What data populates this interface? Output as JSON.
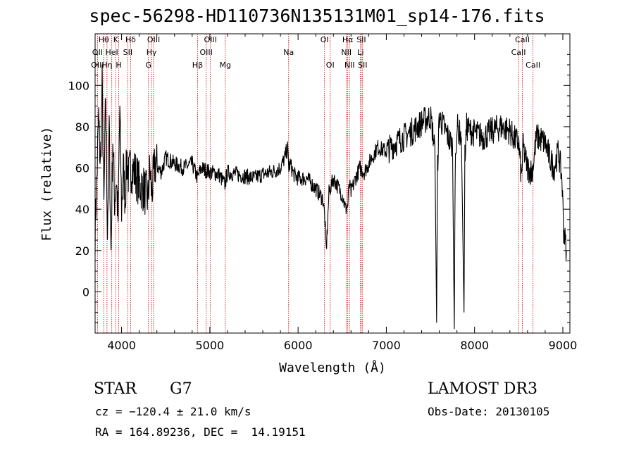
{
  "chart_data": {
    "type": "line",
    "title": "spec-56298-HD110736N135131M01_sp14-176.fits",
    "xlabel": "Wavelength (Å)",
    "ylabel": "Flux (relative)",
    "xlim": [
      3700,
      9080
    ],
    "ylim": [
      -20,
      125
    ],
    "x_ticks": [
      "4000",
      "5000",
      "6000",
      "7000",
      "8000",
      "9000"
    ],
    "x_tick_values": [
      4000,
      5000,
      6000,
      7000,
      8000,
      9000
    ],
    "y_ticks": [
      "0",
      "20",
      "40",
      "60",
      "80",
      "100"
    ],
    "y_tick_values": [
      0,
      20,
      40,
      60,
      80,
      100
    ],
    "series": [
      {
        "name": "flux",
        "x": [
          3700,
          3720,
          3740,
          3760,
          3780,
          3800,
          3820,
          3840,
          3860,
          3880,
          3900,
          3920,
          3940,
          3960,
          3980,
          4000,
          4020,
          4040,
          4060,
          4080,
          4100,
          4150,
          4200,
          4250,
          4300,
          4320,
          4340,
          4380,
          4450,
          4500,
          4600,
          4700,
          4800,
          4860,
          4900,
          5000,
          5100,
          5170,
          5200,
          5300,
          5400,
          5500,
          5600,
          5700,
          5800,
          5850,
          5880,
          5895,
          5910,
          5950,
          6000,
          6100,
          6200,
          6280,
          6300,
          6320,
          6350,
          6400,
          6500,
          6540,
          6563,
          6580,
          6600,
          6650,
          6700,
          6750,
          6800,
          6900,
          7000,
          7100,
          7200,
          7300,
          7400,
          7500,
          7550,
          7570,
          7580,
          7600,
          7650,
          7700,
          7750,
          7770,
          7780,
          7800,
          7850,
          7880,
          7890,
          7910,
          7950,
          8000,
          8100,
          8200,
          8300,
          8400,
          8450,
          8500,
          8530,
          8550,
          8600,
          8650,
          8665,
          8700,
          8750,
          8800,
          8850,
          8900,
          8950,
          8990,
          9010,
          9040
        ],
        "values": [
          30,
          55,
          85,
          60,
          100,
          40,
          95,
          30,
          80,
          20,
          75,
          45,
          55,
          35,
          90,
          40,
          60,
          45,
          65,
          55,
          60,
          58,
          52,
          50,
          45,
          60,
          48,
          62,
          58,
          65,
          62,
          60,
          62,
          55,
          60,
          58,
          57,
          52,
          58,
          57,
          56,
          55,
          57,
          58,
          60,
          65,
          70,
          60,
          62,
          57,
          55,
          55,
          50,
          45,
          38,
          20,
          48,
          55,
          47,
          40,
          42,
          52,
          48,
          55,
          60,
          58,
          62,
          70,
          68,
          72,
          75,
          78,
          82,
          85,
          70,
          -15,
          60,
          85,
          80,
          75,
          70,
          -18,
          60,
          80,
          75,
          -10,
          65,
          80,
          78,
          77,
          75,
          78,
          80,
          78,
          74,
          72,
          55,
          70,
          60,
          58,
          62,
          75,
          74,
          72,
          65,
          60,
          68,
          55,
          30,
          20
        ]
      }
    ],
    "line_labels": [
      {
        "text": "Hθ",
        "x": 3798,
        "row": 0
      },
      {
        "text": "K",
        "x": 3934,
        "row": 0
      },
      {
        "text": "Hδ",
        "x": 4102,
        "row": 0
      },
      {
        "text": "OIII",
        "x": 4363,
        "row": 0
      },
      {
        "text": "OIII",
        "x": 5007,
        "row": 0
      },
      {
        "text": "OI",
        "x": 6300,
        "row": 0
      },
      {
        "text": "Hα",
        "x": 6563,
        "row": 0
      },
      {
        "text": "SII",
        "x": 6716,
        "row": 0
      },
      {
        "text": "CaII",
        "x": 8542,
        "row": 0
      },
      {
        "text": "OII",
        "x": 3727,
        "row": 1
      },
      {
        "text": "HeI",
        "x": 3889,
        "row": 1
      },
      {
        "text": "SII",
        "x": 4070,
        "row": 1
      },
      {
        "text": "Hγ",
        "x": 4340,
        "row": 1
      },
      {
        "text": "OIII",
        "x": 4959,
        "row": 1
      },
      {
        "text": "Na",
        "x": 5893,
        "row": 1
      },
      {
        "text": "NII",
        "x": 6548,
        "row": 1
      },
      {
        "text": "Li",
        "x": 6708,
        "row": 1
      },
      {
        "text": "CaII",
        "x": 8498,
        "row": 1
      },
      {
        "text": "OIII",
        "x": 3727,
        "row": 2
      },
      {
        "text": "Hη",
        "x": 3835,
        "row": 2
      },
      {
        "text": "H",
        "x": 3968,
        "row": 2
      },
      {
        "text": "G",
        "x": 4305,
        "row": 2
      },
      {
        "text": "Hβ",
        "x": 4861,
        "row": 2
      },
      {
        "text": "Mg",
        "x": 5175,
        "row": 2
      },
      {
        "text": "OI",
        "x": 6364,
        "row": 2
      },
      {
        "text": "NII",
        "x": 6583,
        "row": 2
      },
      {
        "text": "SII",
        "x": 6731,
        "row": 2
      },
      {
        "text": "CaII",
        "x": 8662,
        "row": 2
      }
    ],
    "line_marks": [
      3727,
      3798,
      3835,
      3889,
      3934,
      3968,
      4070,
      4102,
      4305,
      4340,
      4363,
      4861,
      4959,
      5007,
      5175,
      5893,
      6300,
      6364,
      6548,
      6563,
      6583,
      6708,
      6716,
      6731,
      8498,
      8542,
      8662
    ],
    "colors": {
      "spectrum": "#000000",
      "lines": "#cc0000",
      "axes": "#000000"
    }
  },
  "info": {
    "class_label": "STAR",
    "subclass": "G7",
    "survey": "LAMOST DR3",
    "cz": "cz = −120.4 ± 21.0 km/s",
    "obs_date": "Obs-Date: 20130105",
    "coords": "RA = 164.89236, DEC =  14.19151"
  }
}
